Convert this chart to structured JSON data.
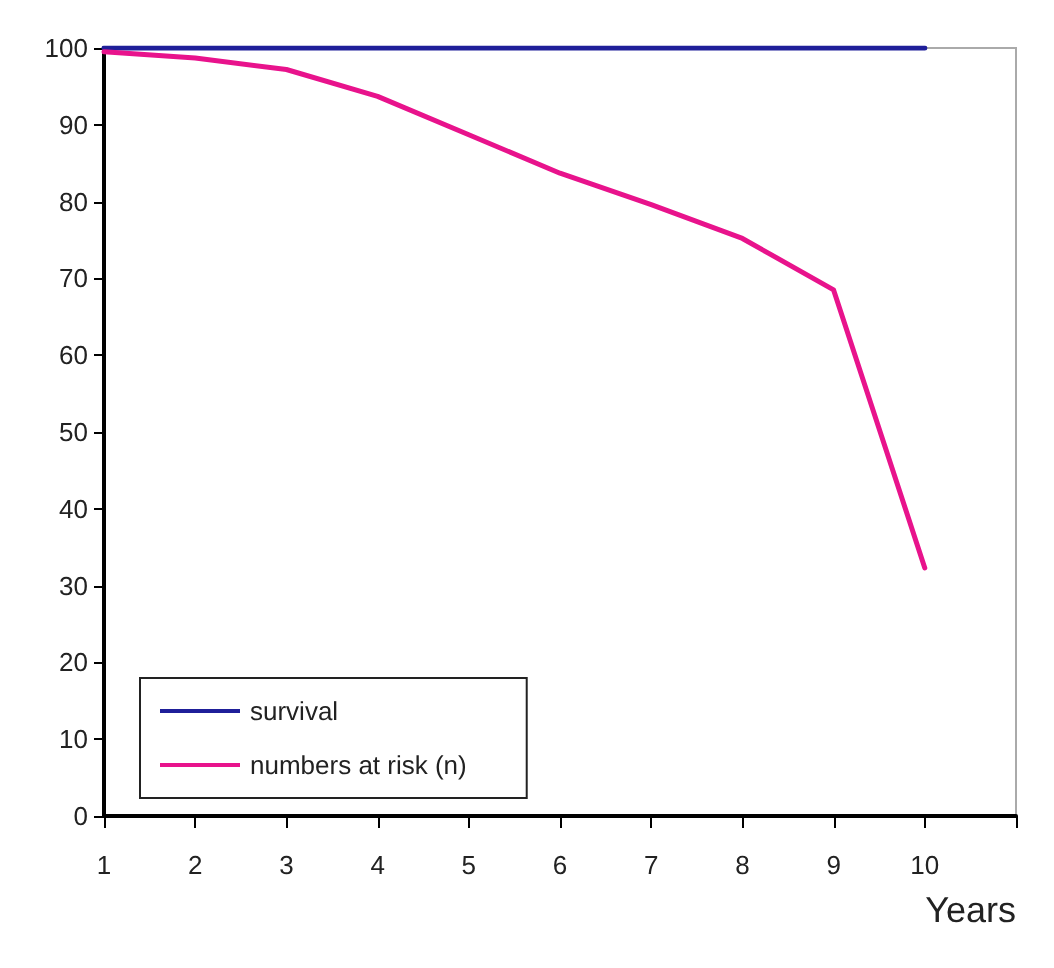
{
  "chart_data": {
    "type": "line",
    "xlabel": "Years",
    "x": [
      1,
      2,
      3,
      4,
      5,
      6,
      7,
      8,
      9,
      10
    ],
    "series": [
      {
        "name": "survival",
        "color": "#1f1f99",
        "values": [
          100,
          100,
          100,
          100,
          100,
          100,
          100,
          100,
          100,
          100
        ]
      },
      {
        "name": "numbers at risk (n)",
        "color": "#e8138c",
        "values": [
          99.5,
          98.7,
          97.2,
          93.7,
          88.7,
          83.7,
          79.6,
          75.2,
          68.5,
          32.3
        ]
      }
    ],
    "xlim": [
      1,
      11
    ],
    "xticks": [
      1,
      2,
      3,
      4,
      5,
      6,
      7,
      8,
      9,
      10,
      {
        "value": 11,
        "label": null
      }
    ],
    "ylim": [
      0,
      100
    ],
    "yticks": [
      0,
      10,
      20,
      30,
      40,
      50,
      60,
      70,
      80,
      90,
      100
    ],
    "grid": false,
    "legend": "bottom left",
    "marker": "none",
    "line_style": "solid"
  }
}
